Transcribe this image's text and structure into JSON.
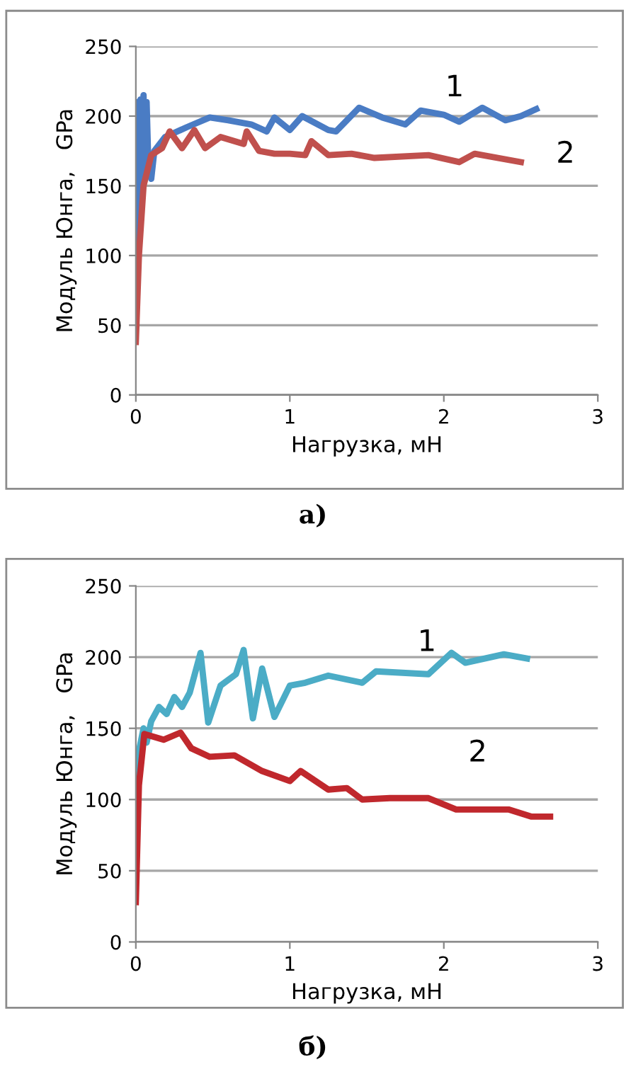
{
  "chart_data": [
    {
      "type": "line",
      "ylabel": "Модуль Юнга,   GPa",
      "xlabel": "Нагрузка, мН",
      "xlim": [
        0,
        3
      ],
      "xticks": [
        0,
        1,
        2,
        3
      ],
      "ylim": [
        0,
        250
      ],
      "yticks": [
        0,
        50,
        100,
        150,
        200,
        250
      ],
      "grid": "y",
      "marker": "none",
      "line_style": "solid",
      "series": [
        {
          "name": "1",
          "color": "#4a7cc4",
          "x": [
            0,
            0.01,
            0.02,
            0.03,
            0.04,
            0.05,
            0.06,
            0.07,
            0.08,
            0.1,
            0.12,
            0.19,
            0.33,
            0.48,
            0.6,
            0.75,
            0.85,
            0.9,
            1.0,
            1.08,
            1.25,
            1.3,
            1.45,
            1.6,
            1.75,
            1.85,
            2.0,
            2.1,
            2.25,
            2.4,
            2.5,
            2.6
          ],
          "values": [
            100,
            210,
            130,
            212,
            150,
            215,
            160,
            210,
            170,
            155,
            175,
            185,
            192,
            199,
            197,
            194,
            189,
            199,
            190,
            200,
            190,
            189,
            206,
            199,
            194,
            204,
            201,
            196,
            206,
            197,
            200,
            205
          ]
        },
        {
          "name": "2",
          "color": "#c0504d",
          "x": [
            0,
            0.02,
            0.05,
            0.1,
            0.17,
            0.22,
            0.3,
            0.38,
            0.45,
            0.55,
            0.7,
            0.72,
            0.8,
            0.9,
            1.0,
            1.1,
            1.14,
            1.25,
            1.4,
            1.55,
            1.9,
            2.1,
            2.2,
            2.5
          ],
          "values": [
            38,
            100,
            150,
            172,
            177,
            189,
            177,
            190,
            177,
            185,
            180,
            189,
            175,
            173,
            173,
            172,
            182,
            172,
            173,
            170,
            172,
            167,
            173,
            167
          ]
        }
      ],
      "annotations": [
        "а)"
      ]
    },
    {
      "type": "line",
      "ylabel": "Модуль Юнга,   GPa",
      "xlabel": "Нагрузка, мН",
      "xlim": [
        0,
        3
      ],
      "xticks": [
        0,
        1,
        2,
        3
      ],
      "ylim": [
        0,
        250
      ],
      "yticks": [
        0,
        50,
        100,
        150,
        200,
        250
      ],
      "grid": "y",
      "marker": "none",
      "line_style": "solid",
      "series": [
        {
          "name": "1",
          "color": "#4bacc6",
          "x": [
            0,
            0.02,
            0.05,
            0.07,
            0.1,
            0.15,
            0.2,
            0.25,
            0.3,
            0.35,
            0.42,
            0.47,
            0.55,
            0.65,
            0.7,
            0.76,
            0.82,
            0.9,
            1.0,
            1.1,
            1.25,
            1.47,
            1.56,
            1.9,
            2.05,
            2.14,
            2.39,
            2.54
          ],
          "values": [
            100,
            134,
            150,
            140,
            155,
            165,
            160,
            172,
            165,
            175,
            203,
            154,
            180,
            188,
            205,
            157,
            192,
            158,
            180,
            182,
            187,
            182,
            190,
            188,
            203,
            196,
            202,
            199
          ]
        },
        {
          "name": "2",
          "color": "#c0282d",
          "x": [
            0,
            0.02,
            0.055,
            0.18,
            0.29,
            0.36,
            0.48,
            0.64,
            0.82,
            1.0,
            1.07,
            1.25,
            1.37,
            1.47,
            1.65,
            1.9,
            2.08,
            2.42,
            2.57,
            2.69
          ],
          "values": [
            28,
            110,
            146,
            142,
            147,
            136,
            130,
            131,
            120,
            113,
            120,
            107,
            108,
            100,
            101,
            101,
            93,
            93,
            88,
            88
          ]
        }
      ],
      "annotations": [
        "б)"
      ]
    }
  ]
}
